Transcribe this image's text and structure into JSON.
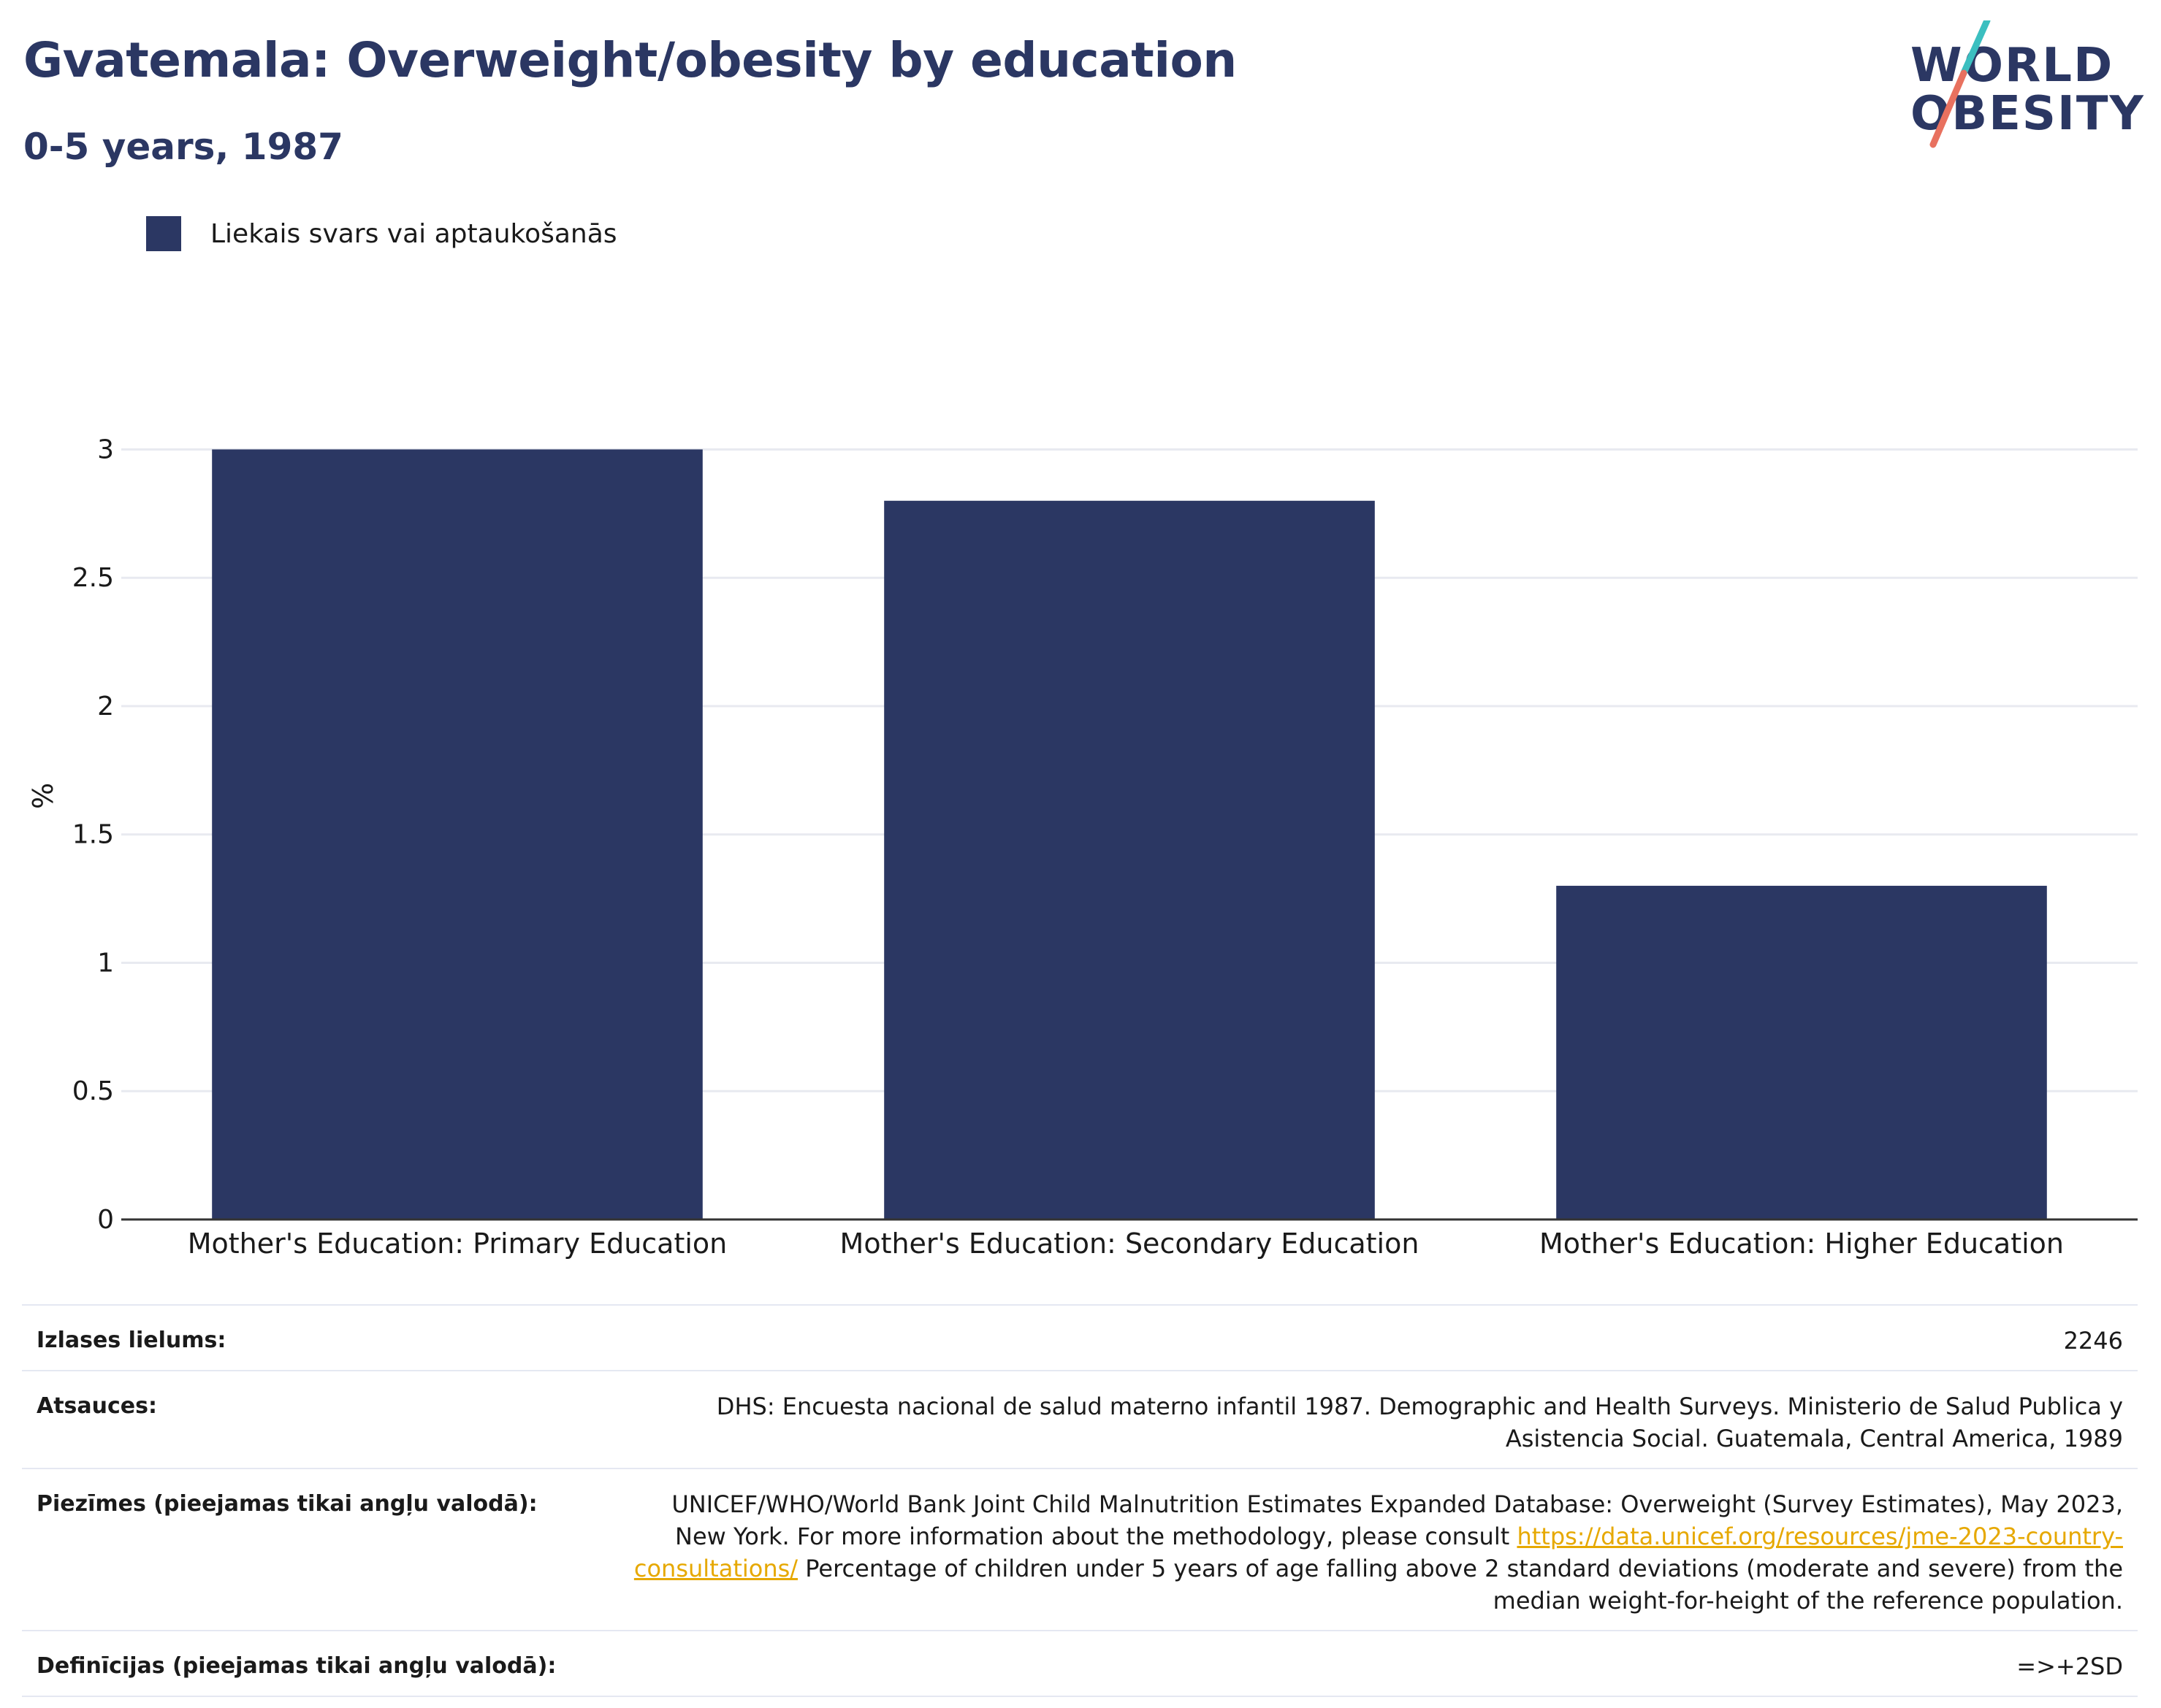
{
  "header": {
    "title": "Gvatemala: Overweight/obesity by education",
    "subtitle": "0-5 years, 1987"
  },
  "logo": {
    "line1": "WORLD",
    "line2": "OBESITY",
    "colors": {
      "text": "#2b3763",
      "accent_teal": "#3bbfc0",
      "accent_coral": "#e8715f"
    }
  },
  "legend": {
    "label": "Liekais svars vai aptaukošanās",
    "color": "#2b3763"
  },
  "chart_data": {
    "type": "bar",
    "categories": [
      "Mother's Education: Primary Education",
      "Mother's Education: Secondary Education",
      "Mother's Education: Higher Education"
    ],
    "series": [
      {
        "name": "Liekais svars vai aptaukošanās",
        "values": [
          3.0,
          2.8,
          1.3
        ],
        "color": "#2b3763"
      }
    ],
    "ylabel": "%",
    "ylim": [
      0,
      3.3
    ],
    "yticks": [
      0,
      0.5,
      1,
      1.5,
      2,
      2.5,
      3
    ],
    "ytick_labels": [
      "0",
      "0.5",
      "1",
      "1.5",
      "2",
      "2.5",
      "3"
    ],
    "grid": true,
    "legend_position": "top-left"
  },
  "info": {
    "sample_label": "Izlases lielums:",
    "sample_value": "2246",
    "sources_label": "Atsauces:",
    "sources_value": "DHS: Encuesta nacional de salud materno infantil 1987. Demographic and Health Surveys. Ministerio de Salud Publica y Asistencia Social. Guatemala, Central America, 1989",
    "notes_label": "Piezīmes (pieejamas tikai angļu valodā):",
    "notes_text_before": "UNICEF/WHO/World Bank Joint Child Malnutrition Estimates Expanded Database: Overweight (Survey Estimates), May 2023, New York. For more information about the methodology, please consult ",
    "notes_link": "https://data.unicef.org/resources/jme-2023-country-consultations/",
    "notes_text_after": " Percentage of children under 5 years of age falling above 2 standard deviations (moderate and severe) from the median weight-for-height of the reference population.",
    "definitions_label": "Definīcijas (pieejamas tikai angļu valodā):",
    "definitions_value": "=>+2SD"
  }
}
